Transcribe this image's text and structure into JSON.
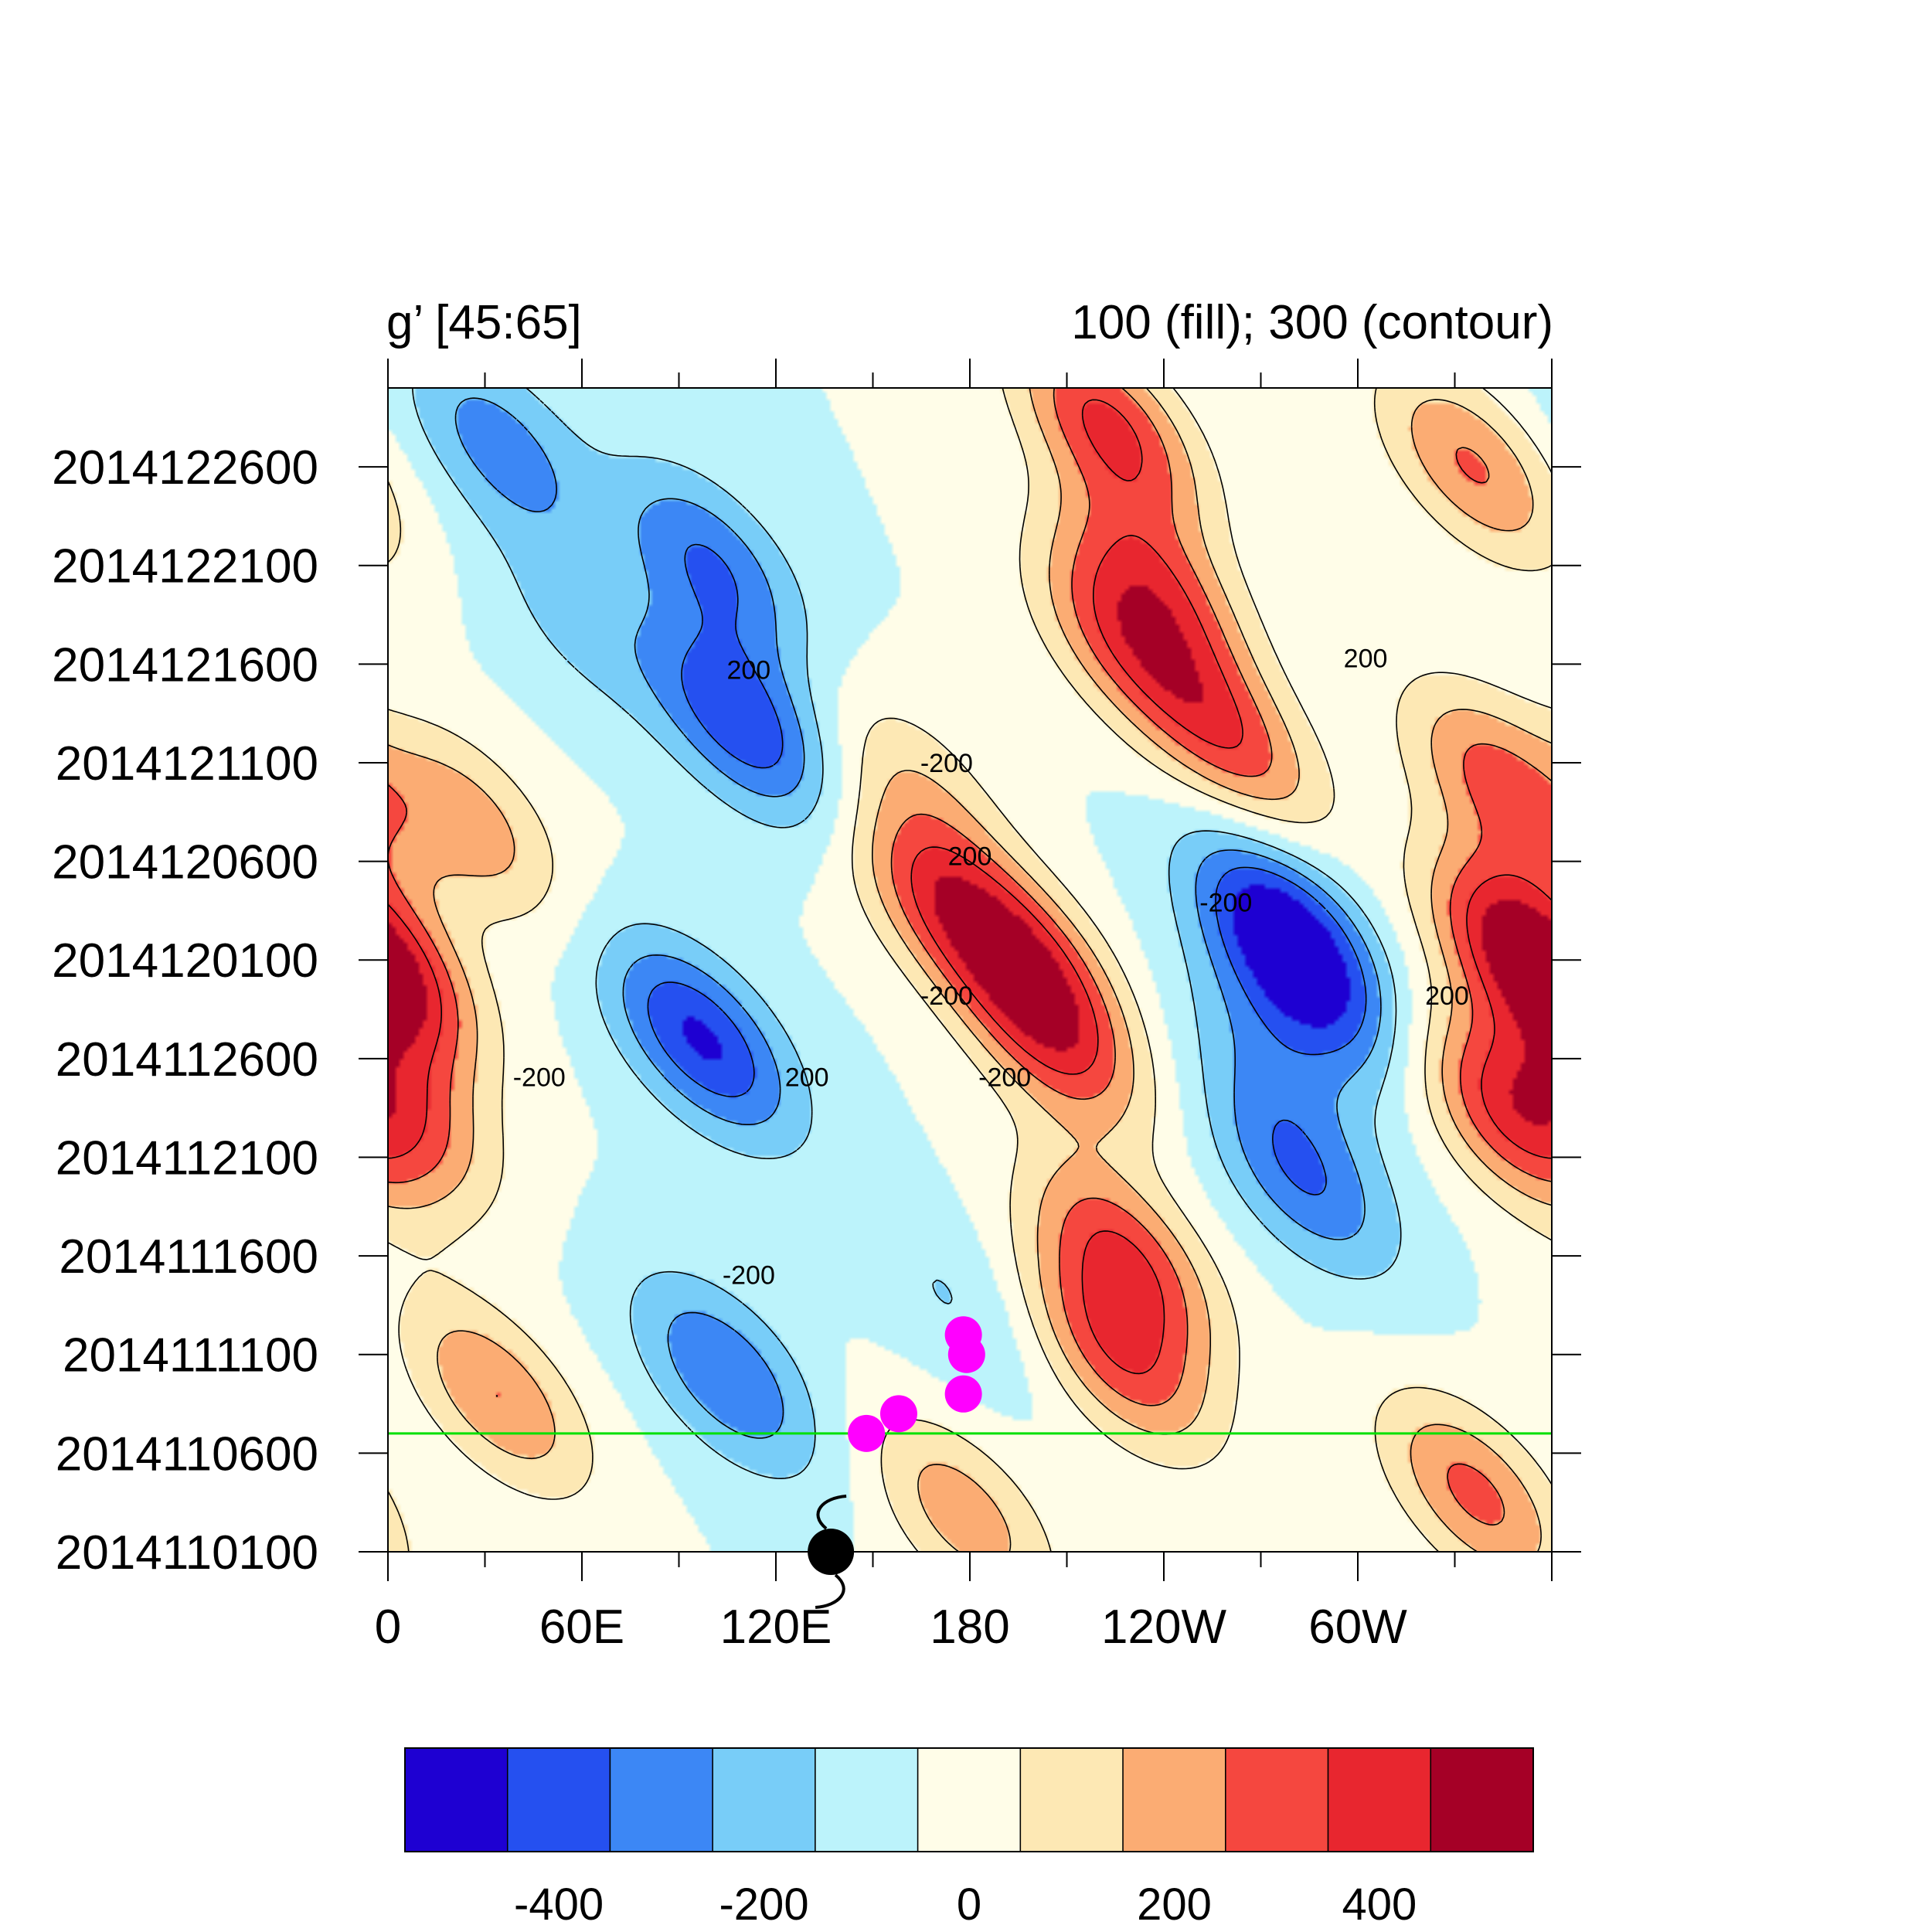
{
  "chart_data": {
    "type": "heatmap",
    "title_left": "g’ [45:65]",
    "title_right": "100 (fill); 300 (contour)",
    "x_axis": {
      "ticks": [
        "0",
        "60E",
        "120E",
        "180",
        "120W",
        "60W"
      ],
      "tick_lon": [
        0,
        60,
        120,
        180,
        240,
        300
      ],
      "range_lon": [
        0,
        360
      ]
    },
    "y_axis": {
      "ticks": [
        "2014122600",
        "2014122100",
        "2014121600",
        "2014121100",
        "2014120600",
        "2014120100",
        "2014112600",
        "2014112100",
        "2014111600",
        "2014111100",
        "2014110600",
        "2014110100"
      ],
      "range": [
        "2014110100",
        "2014123000"
      ]
    },
    "colorbar": {
      "levels": [
        -500,
        -400,
        -300,
        -200,
        -100,
        0,
        100,
        200,
        300,
        400,
        500
      ],
      "colors": [
        "#1e00d2",
        "#2550f0",
        "#3c87f5",
        "#78cdf8",
        "#bcf3fb",
        "#fffde8",
        "#fde8b4",
        "#fbac73",
        "#f5473f",
        "#e8262f",
        "#a50026"
      ],
      "tick_labels": [
        "-400",
        "-200",
        "0",
        "200",
        "400"
      ],
      "tick_values": [
        -400,
        -200,
        0,
        200,
        400
      ]
    },
    "contour_labels": [
      "200",
      "-200"
    ],
    "reference_line": {
      "date": "2014110700",
      "color": "#00e000"
    },
    "track_points": [
      {
        "lon": 148,
        "date": "2014110700"
      },
      {
        "lon": 158,
        "date": "2014110800"
      },
      {
        "lon": 178,
        "date": "2014110900"
      },
      {
        "lon": 179,
        "date": "2014111100"
      },
      {
        "lon": 178,
        "date": "2014111200"
      }
    ],
    "track_color": "#ff00ff",
    "genesis_symbol": {
      "lon": 137,
      "date": "2014110100"
    },
    "anomaly_centers": [
      {
        "lon": 26,
        "date": "2014120800",
        "value": 250
      },
      {
        "lon": 4,
        "date": "2014112400",
        "value": 300
      },
      {
        "lon": 2,
        "date": "2014120100",
        "value": 250
      },
      {
        "lon": 110,
        "date": "2014121300",
        "value": -380
      },
      {
        "lon": 100,
        "date": "2014122100",
        "value": -300
      },
      {
        "lon": 97,
        "date": "2014112700",
        "value": -420
      },
      {
        "lon": 105,
        "date": "2014111000",
        "value": -300
      },
      {
        "lon": 35,
        "date": "2014122700",
        "value": -250
      },
      {
        "lon": 223,
        "date": "2014122800",
        "value": 420
      },
      {
        "lon": 237,
        "date": "2014122000",
        "value": 330
      },
      {
        "lon": 261,
        "date": "2014121200",
        "value": 330
      },
      {
        "lon": 228,
        "date": "2014121700",
        "value": 300
      },
      {
        "lon": 171,
        "date": "2014120400",
        "value": 320
      },
      {
        "lon": 198,
        "date": "2014120100",
        "value": 360
      },
      {
        "lon": 205,
        "date": "2014112700",
        "value": 330
      },
      {
        "lon": 228,
        "date": "2014111600",
        "value": 380
      },
      {
        "lon": 226,
        "date": "2014111100",
        "value": 360
      },
      {
        "lon": 277,
        "date": "2014120300",
        "value": -340
      },
      {
        "lon": 283,
        "date": "2014120000",
        "value": -320
      },
      {
        "lon": 283,
        "date": "2014112000",
        "value": -290
      },
      {
        "lon": 351,
        "date": "2014120100",
        "value": 440
      },
      {
        "lon": 345,
        "date": "2014112300",
        "value": 340
      },
      {
        "lon": 343,
        "date": "2014121000",
        "value": 330
      },
      {
        "lon": 335,
        "date": "2014122600",
        "value": 310
      },
      {
        "lon": 336,
        "date": "2014110400",
        "value": 330
      },
      {
        "lon": 178,
        "date": "2014110300",
        "value": 260
      },
      {
        "lon": 34,
        "date": "2014110900",
        "value": 300
      },
      {
        "lon": 163,
        "date": "2014121000",
        "value": 160
      },
      {
        "lon": 175,
        "date": "2014111400",
        "value": -110
      },
      {
        "lon": 60,
        "date": "2014121800",
        "value": -130
      },
      {
        "lon": 272,
        "date": "2014112600",
        "value": -140
      }
    ]
  }
}
